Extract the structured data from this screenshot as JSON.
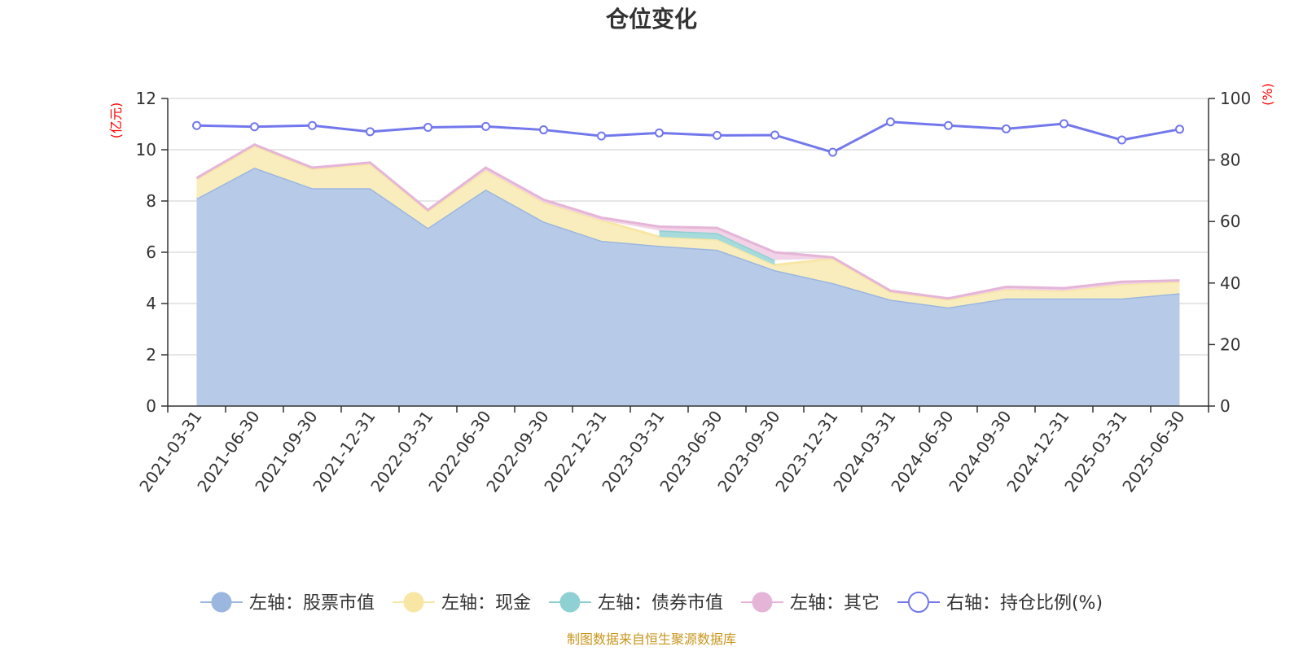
{
  "chart_data": {
    "type": "area",
    "title": "仓位变化",
    "left_unit": "(亿元)",
    "right_unit": "(%)",
    "x": [
      "2021-03-31",
      "2021-06-30",
      "2021-09-30",
      "2021-12-31",
      "2022-03-31",
      "2022-06-30",
      "2022-09-30",
      "2022-12-31",
      "2023-03-31",
      "2023-06-30",
      "2023-09-30",
      "2023-12-31",
      "2024-03-31",
      "2024-06-30",
      "2024-09-30",
      "2024-12-31",
      "2025-03-31",
      "2025-06-30"
    ],
    "left_axis": {
      "ylim": [
        0,
        12
      ],
      "ticks": [
        "0",
        "2",
        "4",
        "6",
        "8",
        "10",
        "12"
      ]
    },
    "right_axis": {
      "ylim": [
        0,
        100
      ],
      "ticks": [
        "0",
        "20",
        "40",
        "60",
        "80",
        "100"
      ]
    },
    "grid": true,
    "stacked": true,
    "series": [
      {
        "name": "左轴：股票市值",
        "axis": "left",
        "color": "#9bb6df",
        "fill": "#b7cbe9",
        "values": [
          8.1,
          9.3,
          8.5,
          8.5,
          6.95,
          8.45,
          7.2,
          6.45,
          6.25,
          6.1,
          5.3,
          4.8,
          4.15,
          3.85,
          4.2,
          4.2,
          4.2,
          4.4
        ]
      },
      {
        "name": "左轴：现金",
        "axis": "left",
        "color": "#f8e6a5",
        "fill": "#f9edbd",
        "values": [
          0.75,
          0.85,
          0.75,
          0.95,
          0.65,
          0.75,
          0.75,
          0.8,
          0.35,
          0.4,
          0.2,
          0.95,
          0.3,
          0.3,
          0.35,
          0.3,
          0.55,
          0.45
        ]
      },
      {
        "name": "左轴：债券市值",
        "axis": "left",
        "color": "#8fd0d3",
        "fill": "#a7dbdb",
        "values": [
          0,
          0,
          0,
          0,
          0,
          0,
          0,
          0,
          0.25,
          0.25,
          0.2,
          0,
          0,
          0,
          0,
          0,
          0,
          0
        ]
      },
      {
        "name": "左轴：其它",
        "axis": "left",
        "color": "#e5b5d8",
        "fill": "#f1d2e6",
        "values": [
          0.05,
          0.05,
          0.05,
          0.05,
          0.05,
          0.1,
          0.1,
          0.1,
          0.15,
          0.2,
          0.3,
          0.05,
          0.05,
          0.05,
          0.1,
          0.1,
          0.1,
          0.05
        ]
      },
      {
        "name": "右轴：持仓比例(%)",
        "axis": "right",
        "type": "line",
        "color": "#7278ec",
        "values": [
          91.2,
          90.8,
          91.2,
          89.2,
          90.6,
          90.9,
          89.8,
          87.8,
          88.8,
          88.0,
          88.1,
          82.5,
          92.4,
          91.2,
          90.1,
          91.8,
          86.5,
          90.0
        ]
      }
    ],
    "legend_position": "bottom",
    "source": "制图数据来自恒生聚源数据库"
  }
}
